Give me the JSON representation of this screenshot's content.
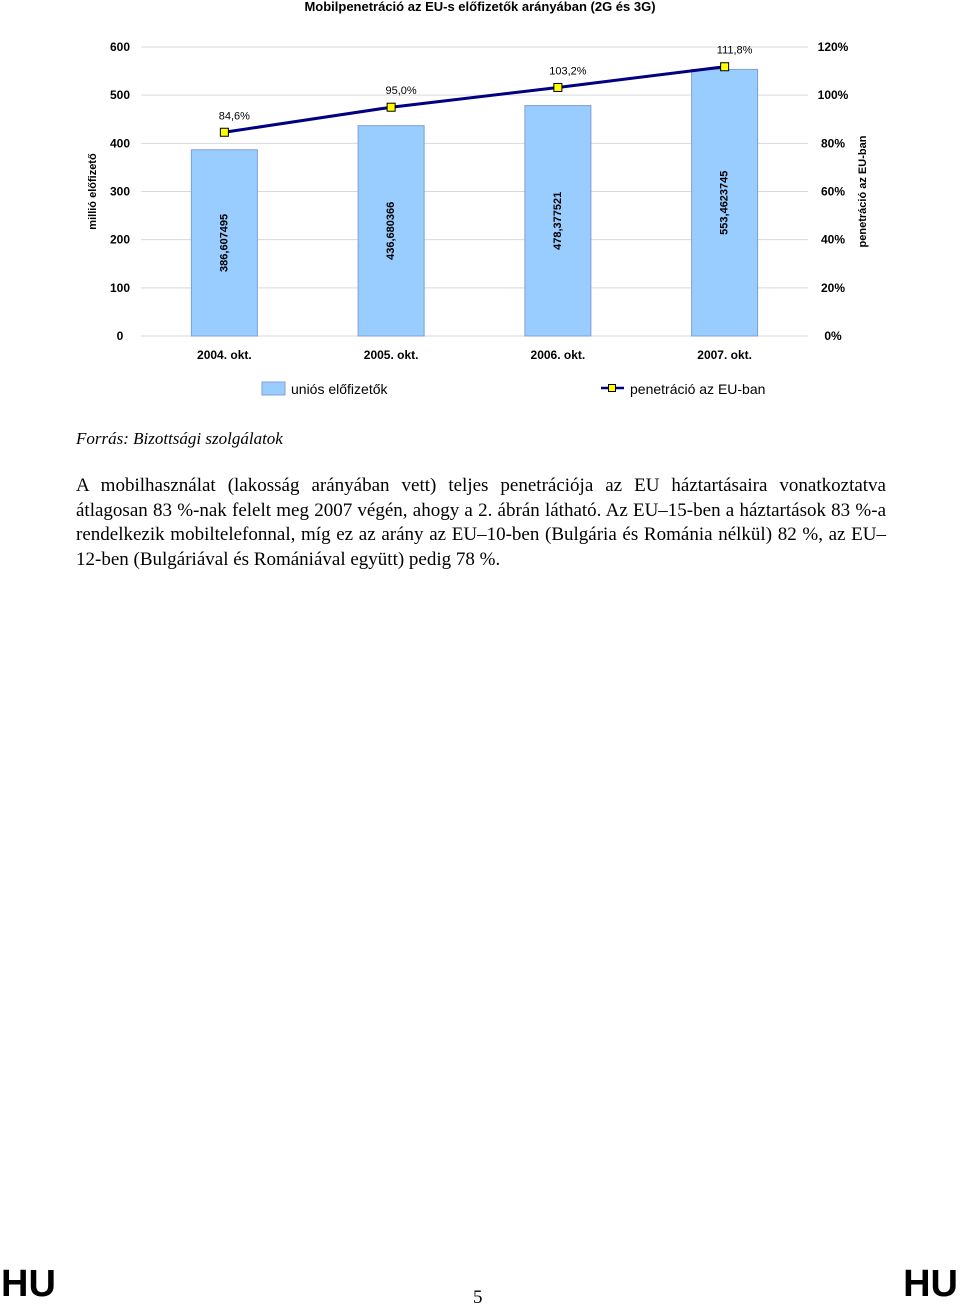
{
  "chart_data": {
    "type": "bar+line",
    "title": "Mobilpenetráció az EU-s előfizetők arányában (2G és 3G)",
    "categories": [
      "2004. okt.",
      "2005. okt.",
      "2006. okt.",
      "2007. okt."
    ],
    "series": [
      {
        "name": "uniós előfizetők",
        "type": "bar",
        "axis": "left",
        "values": [
          386.607495,
          436.680366,
          478.377521,
          553.4623745
        ],
        "labels": [
          "386,607495",
          "436,680366",
          "478,377521",
          "553,4623745"
        ],
        "color": "#99ccff"
      },
      {
        "name": "penetráció az EU-ban",
        "type": "line",
        "axis": "right",
        "values": [
          84.6,
          95.0,
          103.2,
          111.8
        ],
        "labels": [
          "84,6%",
          "95,0%",
          "103,2%",
          "111,8%"
        ],
        "line_color": "#000080",
        "marker_color": "#ffff00"
      }
    ],
    "ylabel_left": "millió előfizető",
    "ylabel_right": "penetráció az EU-ban",
    "ylim_left": [
      0,
      600
    ],
    "ylim_right": [
      0,
      120
    ],
    "yticks_left": [
      "0",
      "100",
      "200",
      "300",
      "400",
      "500",
      "600"
    ],
    "yticks_right": [
      "0%",
      "20%",
      "40%",
      "60%",
      "80%",
      "100%",
      "120%"
    ],
    "grid": true,
    "legend_position": "bottom"
  },
  "source": "Forrás: Bizottsági szolgálatok",
  "paragraph": "A mobilhasználat (lakosság arányában vett) teljes penetrációja az EU háztartásaira vonatkoztatva átlagosan 83 %-nak felelt meg 2007 végén, ahogy a 2. ábrán látható. Az EU–15-ben a háztartások 83 %-a rendelkezik mobiltelefonnal, míg ez az arány az EU–10-ben (Bulgária és Románia nélkül) 82 %, az EU–12-ben (Bulgáriával és Romániával együtt) pedig 78 %.",
  "footer": {
    "left_label": "HU",
    "right_label": "HU",
    "page_number": "5"
  }
}
